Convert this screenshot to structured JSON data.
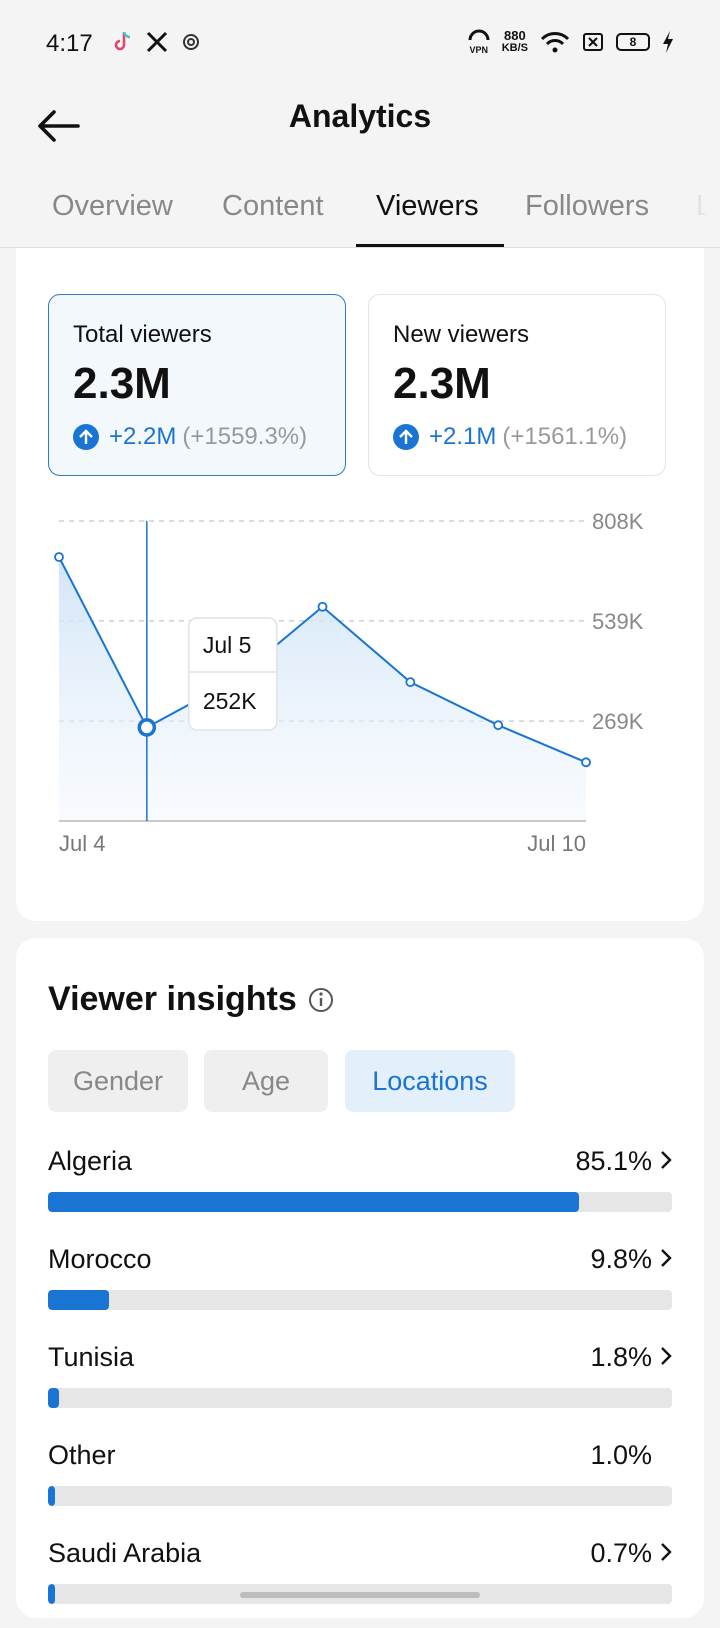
{
  "status_bar": {
    "time": "4:17",
    "net_speed_value": "880",
    "net_speed_unit": "KB/S",
    "vpn_label": "VPN",
    "battery": "8"
  },
  "header": {
    "title": "Analytics"
  },
  "tabs": [
    {
      "label": "Overview",
      "active": false
    },
    {
      "label": "Content",
      "active": false
    },
    {
      "label": "Viewers",
      "active": true
    },
    {
      "label": "Followers",
      "active": false
    },
    {
      "label": "Li",
      "active": false
    }
  ],
  "metrics": [
    {
      "label": "Total viewers",
      "value": "2.3M",
      "change": "+2.2M",
      "change_pct": "(+1559.3%)",
      "selected": true
    },
    {
      "label": "New viewers",
      "value": "2.3M",
      "change": "+2.1M",
      "change_pct": "(+1561.1%)",
      "selected": false
    }
  ],
  "chart_data": {
    "type": "area",
    "x": [
      "Jul 4",
      "Jul 5",
      "Jul 6",
      "Jul 7",
      "Jul 8",
      "Jul 9",
      "Jul 10"
    ],
    "series": [
      {
        "values": [
          711000,
          252000,
          380000,
          577000,
          374000,
          258000,
          158000
        ]
      }
    ],
    "x_tick_labels": [
      "Jul 4",
      "Jul 10"
    ],
    "y_ticks": [
      269000,
      539000,
      808000
    ],
    "y_tick_labels": [
      "269K",
      "539K",
      "808K"
    ],
    "ylim": [
      0,
      808000
    ],
    "grid": true,
    "color": "#1a74d4",
    "tooltip": {
      "date": "Jul 5",
      "value": "252K"
    },
    "highlight_index": 1
  },
  "insights": {
    "title": "Viewer insights",
    "chips": [
      {
        "label": "Gender",
        "active": false
      },
      {
        "label": "Age",
        "active": false
      },
      {
        "label": "Locations",
        "active": true
      }
    ],
    "locations": [
      {
        "name": "Algeria",
        "pct": "85.1%",
        "value": 85.1,
        "chevron": true
      },
      {
        "name": "Morocco",
        "pct": "9.8%",
        "value": 9.8,
        "chevron": true
      },
      {
        "name": "Tunisia",
        "pct": "1.8%",
        "value": 1.8,
        "chevron": true
      },
      {
        "name": "Other",
        "pct": "1.0%",
        "value": 1.0,
        "chevron": false
      },
      {
        "name": "Saudi Arabia",
        "pct": "0.7%",
        "value": 0.7,
        "chevron": true
      }
    ]
  }
}
